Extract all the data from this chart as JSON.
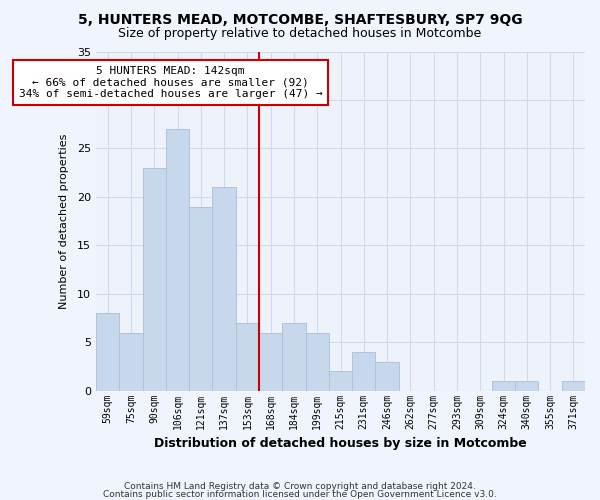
{
  "title1": "5, HUNTERS MEAD, MOTCOMBE, SHAFTESBURY, SP7 9QG",
  "title2": "Size of property relative to detached houses in Motcombe",
  "xlabel": "Distribution of detached houses by size in Motcombe",
  "ylabel": "Number of detached properties",
  "categories": [
    "59sqm",
    "75sqm",
    "90sqm",
    "106sqm",
    "121sqm",
    "137sqm",
    "153sqm",
    "168sqm",
    "184sqm",
    "199sqm",
    "215sqm",
    "231sqm",
    "246sqm",
    "262sqm",
    "277sqm",
    "293sqm",
    "309sqm",
    "324sqm",
    "340sqm",
    "355sqm",
    "371sqm"
  ],
  "values": [
    8,
    6,
    23,
    27,
    19,
    21,
    7,
    6,
    7,
    6,
    2,
    4,
    3,
    0,
    0,
    0,
    0,
    1,
    1,
    0,
    1
  ],
  "bar_color": "#c8d8ec",
  "bar_edge_color": "#a8c0d8",
  "grid_color": "#d0daea",
  "background_color": "#eef2fa",
  "red_line_x": 6.5,
  "annotation_text": "5 HUNTERS MEAD: 142sqm\n← 66% of detached houses are smaller (92)\n34% of semi-detached houses are larger (47) →",
  "annotation_box_color": "#ffffff",
  "annotation_box_edge_color": "#cc0000",
  "footer1": "Contains HM Land Registry data © Crown copyright and database right 2024.",
  "footer2": "Contains public sector information licensed under the Open Government Licence v3.0.",
  "ylim": [
    0,
    35
  ],
  "yticks": [
    0,
    5,
    10,
    15,
    20,
    25,
    30,
    35
  ]
}
